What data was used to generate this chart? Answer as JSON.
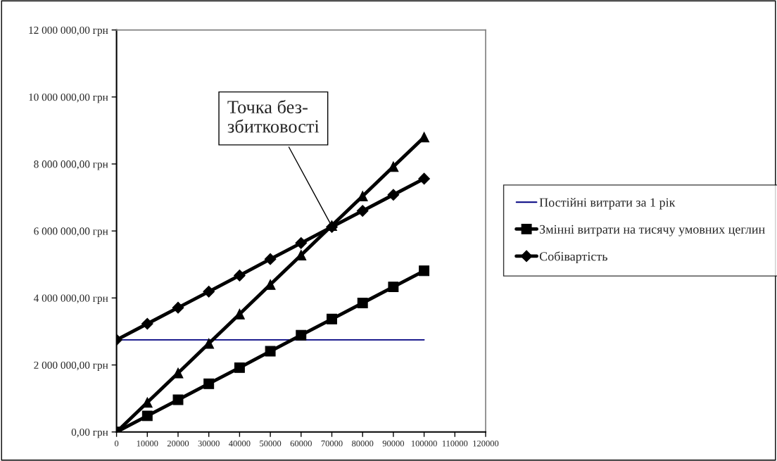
{
  "chart_data": {
    "type": "line",
    "x": [
      0,
      10000,
      20000,
      30000,
      40000,
      50000,
      60000,
      70000,
      80000,
      90000,
      100000
    ],
    "series": [
      {
        "name": "Постійні витрати за 1 рік",
        "color": "#000080",
        "marker": "none",
        "values": [
          2750000,
          2750000,
          2750000,
          2750000,
          2750000,
          2750000,
          2750000,
          2750000,
          2750000,
          2750000,
          2750000
        ]
      },
      {
        "name": "Змінні витрати на тисячу умовних цеглин",
        "color": "#000000",
        "marker": "square",
        "values": [
          0,
          480000,
          960000,
          1440000,
          1920000,
          2410000,
          2890000,
          3370000,
          3850000,
          4330000,
          4810000
        ]
      },
      {
        "name": "Собівартість",
        "color": "#000000",
        "marker": "diamond",
        "values": [
          2750000,
          3230000,
          3710000,
          4190000,
          4670000,
          5160000,
          5640000,
          6120000,
          6600000,
          7080000,
          7560000
        ]
      },
      {
        "color": "#000000",
        "marker": "triangle",
        "values": [
          0,
          880000,
          1760000,
          2640000,
          3520000,
          4400000,
          5280000,
          6160000,
          7040000,
          7920000,
          8800000
        ]
      }
    ],
    "xlim": [
      0,
      120000
    ],
    "xticks": [
      0,
      10000,
      20000,
      30000,
      40000,
      50000,
      60000,
      70000,
      80000,
      90000,
      100000,
      110000,
      120000
    ],
    "ylim": [
      0,
      12000000
    ],
    "yticks": [
      {
        "value": 0,
        "label": "0,00 грн"
      },
      {
        "value": 2000000,
        "label": "2 000 000,00 грн"
      },
      {
        "value": 4000000,
        "label": "4 000 000,00 грн"
      },
      {
        "value": 6000000,
        "label": "6 000 000,00 грн"
      },
      {
        "value": 8000000,
        "label": "8 000 000,00 грн"
      },
      {
        "value": 10000000,
        "label": "10 000 000,00 грн"
      },
      {
        "value": 12000000,
        "label": "12 000 000,00 грн"
      }
    ],
    "annotations": [
      {
        "text": "Точка без-\nзбитковості",
        "x": 70000,
        "y": 6140000
      }
    ],
    "grid": false,
    "legend": "right"
  }
}
